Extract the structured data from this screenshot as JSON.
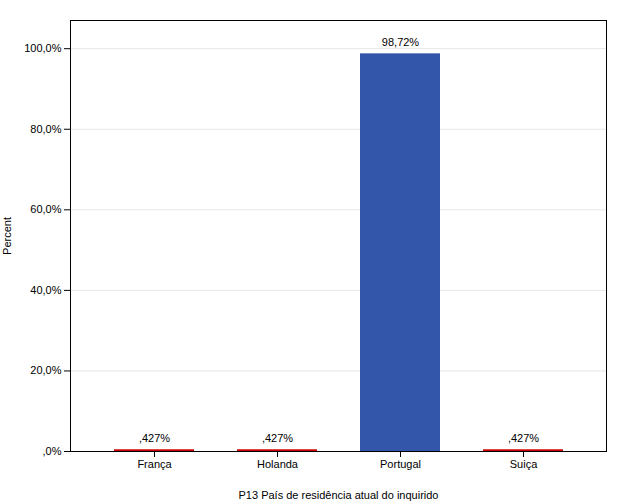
{
  "chart_data": {
    "type": "bar",
    "categories": [
      "França",
      "Holanda",
      "Portugal",
      "Suiça"
    ],
    "values": [
      0.427,
      0.427,
      98.72,
      0.427
    ],
    "colors": [
      "#cc0000",
      "#cc0000",
      "#3355aa",
      "#cc0000"
    ],
    "xlabel": "P13 País de residência atual do inquirido",
    "ylabel": "Percent",
    "ylim": [
      0,
      107
    ],
    "yticks": [
      {
        "value": 0,
        "label": ",0%"
      },
      {
        "value": 20,
        "label": "20,0%"
      },
      {
        "value": 40,
        "label": "40,0%"
      },
      {
        "value": 60,
        "label": "60,0%"
      },
      {
        "value": 80,
        "label": "80,0%"
      },
      {
        "value": 100,
        "label": "100,0%"
      }
    ],
    "grid": true,
    "data_labels": true,
    "value_labels": [
      ",427%",
      ",427%",
      "98,72%",
      ",427%"
    ]
  }
}
